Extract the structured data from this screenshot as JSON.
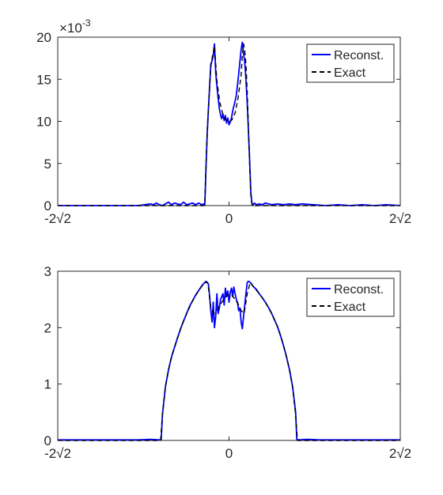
{
  "chart_data": [
    {
      "type": "line",
      "title": "",
      "xlabel": "",
      "ylabel": "",
      "y_exponent_label": "×10",
      "y_exponent_power": "-3",
      "xlim": [
        -2.8284,
        2.8284
      ],
      "ylim": [
        0,
        0.02
      ],
      "xticks": [
        -2.8284,
        0,
        2.8284
      ],
      "xtick_labels": [
        "-2√2",
        "0",
        "2√2"
      ],
      "yticks": [
        0,
        0.005,
        0.01,
        0.015,
        0.02
      ],
      "ytick_labels": [
        "0",
        "5",
        "10",
        "15",
        "20"
      ],
      "legend_position": "top-right",
      "grid": false,
      "series": [
        {
          "name": "Reconst.",
          "color": "#0000ff",
          "style": "solid",
          "x": [
            -2.8284,
            -1.5,
            -1.3,
            -1.25,
            -1.2,
            -1.15,
            -1.1,
            -1.0,
            -0.95,
            -0.9,
            -0.85,
            -0.8,
            -0.75,
            -0.7,
            -0.65,
            -0.6,
            -0.55,
            -0.5,
            -0.45,
            -0.42,
            -0.4,
            -0.38,
            -0.36,
            -0.34,
            -0.32,
            -0.3,
            -0.28,
            -0.26,
            -0.25,
            -0.24,
            -0.23,
            -0.22,
            -0.2,
            -0.18,
            -0.16,
            -0.14,
            -0.12,
            -0.1,
            -0.08,
            -0.06,
            -0.04,
            -0.02,
            0.0,
            0.02,
            0.04,
            0.06,
            0.08,
            0.1,
            0.12,
            0.14,
            0.16,
            0.18,
            0.2,
            0.22,
            0.23,
            0.24,
            0.25,
            0.26,
            0.28,
            0.3,
            0.32,
            0.34,
            0.36,
            0.38,
            0.4,
            0.42,
            0.45,
            0.5,
            0.55,
            0.6,
            0.7,
            0.8,
            0.9,
            1.0,
            1.1,
            1.2,
            1.4,
            1.6,
            1.8,
            2.0,
            2.2,
            2.4,
            2.6,
            2.8284
          ],
          "y": [
            0,
            0,
            0.0002,
            0.0001,
            0.0003,
            0.0001,
            0,
            0.0004,
            0.0001,
            0.0003,
            0.0002,
            0.0001,
            0.0004,
            0.0001,
            0.0002,
            0.0003,
            0.0001,
            0.0003,
            0.0001,
            0.0002,
            0.0001,
            0.0045,
            0.0085,
            0.0115,
            0.0142,
            0.0168,
            0.0172,
            0.0178,
            0.0185,
            0.0192,
            0.0175,
            0.0158,
            0.0142,
            0.0128,
            0.0115,
            0.0108,
            0.0103,
            0.0109,
            0.0101,
            0.0107,
            0.0098,
            0.0104,
            0.0096,
            0.0099,
            0.0104,
            0.0112,
            0.0118,
            0.0124,
            0.0131,
            0.0143,
            0.0156,
            0.0171,
            0.0185,
            0.0194,
            0.0188,
            0.018,
            0.0176,
            0.017,
            0.015,
            0.0122,
            0.009,
            0.0055,
            0.0015,
            0.0002,
            0.0001,
            0.0003,
            0.0001,
            0.0002,
            0.0001,
            0.0003,
            0.0001,
            0.0002,
            0.0001,
            0.0002,
            0.0001,
            0.0002,
            0.0001,
            0,
            0.0001,
            0,
            0.0001,
            0,
            0.0001,
            0
          ]
        },
        {
          "name": "Exact",
          "color": "#000000",
          "style": "dashed",
          "x": [
            -2.8284,
            -0.42,
            -0.4,
            -0.38,
            -0.36,
            -0.34,
            -0.32,
            -0.3,
            -0.28,
            -0.26,
            -0.24,
            -0.22,
            -0.2,
            -0.15,
            -0.1,
            -0.05,
            0.0,
            0.05,
            0.1,
            0.15,
            0.2,
            0.22,
            0.24,
            0.26,
            0.28,
            0.3,
            0.32,
            0.34,
            0.36,
            0.38,
            0.4,
            0.42,
            2.8284
          ],
          "y": [
            0,
            0,
            0.0001,
            0.0045,
            0.0085,
            0.0115,
            0.0142,
            0.0165,
            0.0175,
            0.0182,
            0.019,
            0.0168,
            0.0148,
            0.0122,
            0.0108,
            0.0101,
            0.0099,
            0.0102,
            0.011,
            0.0128,
            0.0155,
            0.0178,
            0.0192,
            0.0184,
            0.0168,
            0.0135,
            0.0095,
            0.0052,
            0.0012,
            0.0001,
            0,
            0,
            0
          ]
        }
      ]
    },
    {
      "type": "line",
      "title": "",
      "xlabel": "",
      "ylabel": "",
      "xlim": [
        -2.8284,
        2.8284
      ],
      "ylim": [
        0,
        3
      ],
      "xticks": [
        -2.8284,
        0,
        2.8284
      ],
      "xtick_labels": [
        "-2√2",
        "0",
        "2√2"
      ],
      "yticks": [
        0,
        1,
        2,
        3
      ],
      "ytick_labels": [
        "0",
        "1",
        "2",
        "3"
      ],
      "legend_position": "top-right",
      "grid": false,
      "series": [
        {
          "name": "Reconst.",
          "color": "#0000ff",
          "style": "solid",
          "x": [
            -2.8284,
            -1.5,
            -1.3,
            -1.15,
            -1.12,
            -1.1,
            -1.05,
            -1.0,
            -0.95,
            -0.9,
            -0.85,
            -0.8,
            -0.75,
            -0.7,
            -0.65,
            -0.6,
            -0.55,
            -0.5,
            -0.45,
            -0.42,
            -0.4,
            -0.38,
            -0.36,
            -0.34,
            -0.32,
            -0.3,
            -0.28,
            -0.26,
            -0.24,
            -0.22,
            -0.2,
            -0.18,
            -0.16,
            -0.14,
            -0.12,
            -0.1,
            -0.08,
            -0.06,
            -0.04,
            -0.02,
            0.0,
            0.02,
            0.04,
            0.06,
            0.08,
            0.1,
            0.12,
            0.14,
            0.16,
            0.18,
            0.2,
            0.22,
            0.24,
            0.26,
            0.28,
            0.3,
            0.32,
            0.34,
            0.36,
            0.38,
            0.4,
            0.45,
            0.5,
            0.55,
            0.6,
            0.65,
            0.7,
            0.75,
            0.8,
            0.85,
            0.9,
            0.95,
            1.0,
            1.05,
            1.1,
            1.12,
            1.15,
            1.3,
            1.5,
            2.8284
          ],
          "y": [
            0.01,
            0.01,
            0.02,
            0.01,
            0.02,
            0.45,
            0.95,
            1.25,
            1.48,
            1.65,
            1.82,
            1.98,
            2.12,
            2.25,
            2.38,
            2.48,
            2.58,
            2.66,
            2.74,
            2.78,
            2.8,
            2.82,
            2.8,
            2.77,
            2.55,
            2.3,
            2.1,
            2.45,
            2.0,
            2.2,
            2.6,
            2.25,
            2.35,
            2.5,
            2.55,
            2.6,
            2.4,
            2.7,
            2.55,
            2.65,
            2.45,
            2.62,
            2.7,
            2.55,
            2.72,
            2.6,
            2.5,
            2.45,
            2.3,
            2.35,
            2.1,
            1.98,
            2.2,
            2.4,
            2.6,
            2.8,
            2.82,
            2.81,
            2.79,
            2.76,
            2.73,
            2.68,
            2.6,
            2.53,
            2.45,
            2.36,
            2.26,
            2.14,
            2.02,
            1.86,
            1.68,
            1.48,
            1.25,
            0.95,
            0.5,
            0.02,
            0.01,
            0.02,
            0.01,
            0.01
          ]
        },
        {
          "name": "Exact",
          "color": "#000000",
          "style": "dashed",
          "x": [
            -2.8284,
            -1.13,
            -1.1,
            -1.05,
            -1.0,
            -0.95,
            -0.9,
            -0.85,
            -0.8,
            -0.75,
            -0.7,
            -0.6,
            -0.5,
            -0.4,
            -0.35,
            -0.3,
            -0.25,
            -0.2,
            -0.15,
            -0.1,
            -0.05,
            0.0,
            0.05,
            0.1,
            0.15,
            0.2,
            0.25,
            0.3,
            0.35,
            0.4,
            0.5,
            0.6,
            0.7,
            0.75,
            0.8,
            0.85,
            0.9,
            0.95,
            1.0,
            1.05,
            1.1,
            1.13,
            2.8284
          ],
          "y": [
            0,
            0,
            0.45,
            0.95,
            1.25,
            1.48,
            1.65,
            1.82,
            1.98,
            2.12,
            2.25,
            2.48,
            2.66,
            2.8,
            2.8,
            2.35,
            2.25,
            2.3,
            2.4,
            2.48,
            2.55,
            2.6,
            2.57,
            2.5,
            2.42,
            2.3,
            2.25,
            2.6,
            2.8,
            2.73,
            2.6,
            2.45,
            2.26,
            2.14,
            2.02,
            1.86,
            1.68,
            1.48,
            1.25,
            0.95,
            0.45,
            0,
            0
          ]
        }
      ]
    }
  ]
}
